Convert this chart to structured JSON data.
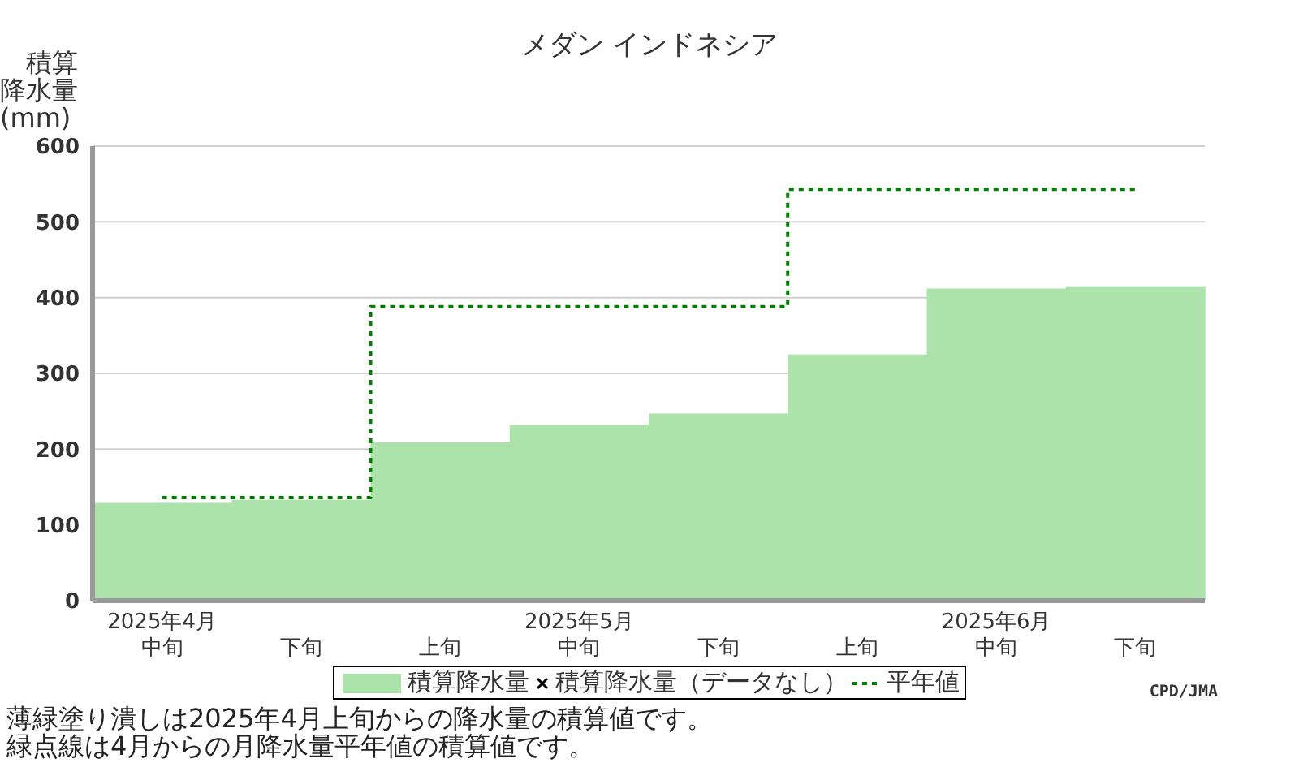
{
  "chart_data": {
    "type": "bar",
    "title": "メダン インドネシア",
    "ylabel": "積算降水量(mm)",
    "categories": [
      "2025年4月中旬",
      "下旬",
      "上旬",
      "2025年5月中旬",
      "下旬",
      "上旬",
      "2025年6月中旬",
      "下旬"
    ],
    "series": [
      {
        "name": "積算降水量",
        "color": "#abe3aa",
        "values": [
          129,
          133,
          209,
          232,
          247,
          325,
          412,
          415
        ]
      },
      {
        "name": "積算降水量（データなし）",
        "type": "scatter",
        "marker": "cross",
        "color": "#000000",
        "values": [
          null,
          null,
          null,
          null,
          null,
          null,
          null,
          null
        ]
      },
      {
        "name": "平年値",
        "type": "step",
        "line_style": "dotted",
        "color": "#008000",
        "values": [
          136,
          136,
          388,
          388,
          388,
          543,
          543,
          543
        ]
      }
    ],
    "ylim": [
      0,
      600
    ],
    "yticks": [
      0,
      100,
      200,
      300,
      400,
      500,
      600
    ],
    "grid": "y",
    "legend": "bottom",
    "annotations": [
      "CPD/JMA",
      "薄緑塗り潰しは2025年4月上旬からの降水量の積算値です。",
      "緑点線は4月からの月降水量平年値の積算値です。"
    ]
  }
}
